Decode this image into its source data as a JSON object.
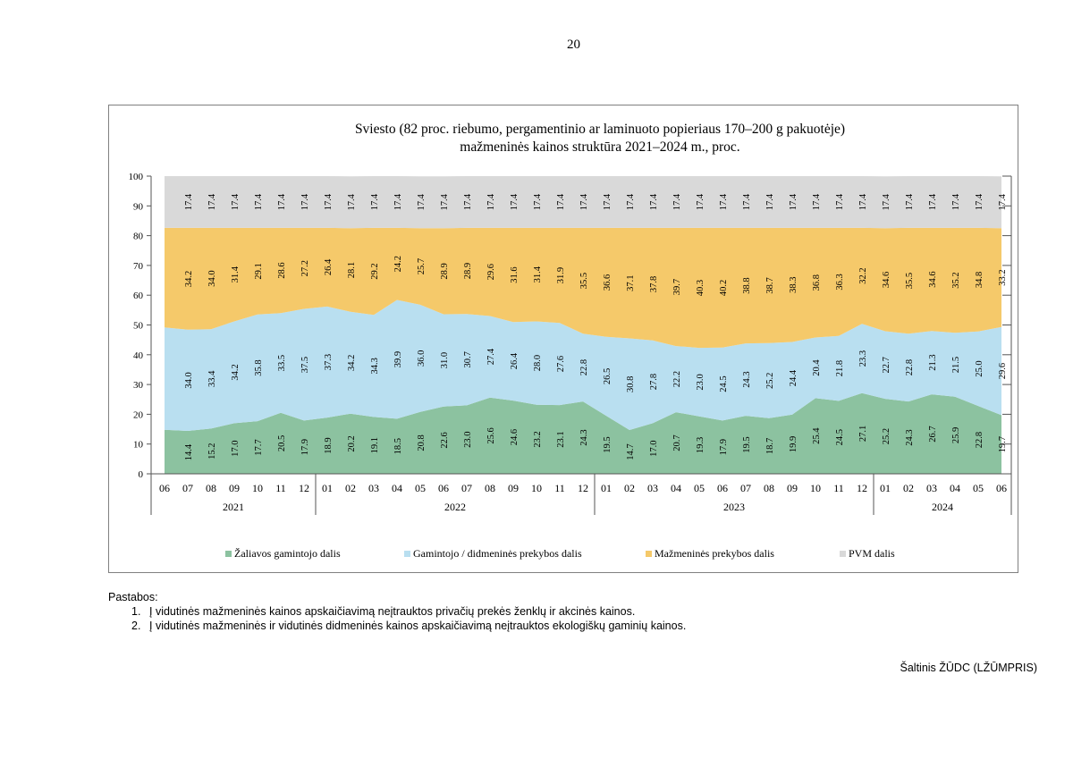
{
  "page_number": "20",
  "title_line1": "Sviesto (82 proc. riebumo, pergamentinio ar laminuoto popieriaus 170–200 g pakuotėje)",
  "title_line2": "mažmeninės kainos struktūra 2021–2024 m., proc.",
  "legend": [
    {
      "label": "Žaliavos gamintojo dalis",
      "color": "#8cc2a0"
    },
    {
      "label": "Gamintojo / didmeninės prekybos dalis",
      "color": "#b9dff0"
    },
    {
      "label": "Mažmeninės prekybos dalis",
      "color": "#f5c96a"
    },
    {
      "label": "PVM dalis",
      "color": "#d9d9d9"
    }
  ],
  "notes_heading": "Pastabos:",
  "notes": [
    {
      "num": "1.",
      "text": "Į vidutinės mažmeninės kainos apskaičiavimą neįtrauktos privačių prekės ženklų ir akcinės kainos."
    },
    {
      "num": "2.",
      "text": "Į vidutinės mažmeninės ir vidutinės didmeninės kainos apskaičiavimą neįtrauktos ekologiškų gaminių kainos."
    }
  ],
  "source": "Šaltinis ŽŪDC (LŽŪMPRIS)",
  "chart_data": {
    "type": "area",
    "stacked": true,
    "ylim": [
      0,
      100
    ],
    "yticks": [
      0,
      10,
      20,
      30,
      40,
      50,
      60,
      70,
      80,
      90,
      100
    ],
    "categories": [
      "06",
      "07",
      "08",
      "09",
      "10",
      "11",
      "12",
      "01",
      "02",
      "03",
      "04",
      "05",
      "06",
      "07",
      "08",
      "09",
      "10",
      "11",
      "12",
      "01",
      "02",
      "03",
      "04",
      "05",
      "06",
      "07",
      "08",
      "09",
      "10",
      "11",
      "12",
      "01",
      "02",
      "03",
      "04",
      "05",
      "06"
    ],
    "year_groups": [
      {
        "label": "2021",
        "count": 7
      },
      {
        "label": "2022",
        "count": 12
      },
      {
        "label": "2023",
        "count": 12
      },
      {
        "label": "2024",
        "count": 6
      }
    ],
    "series": [
      {
        "name": "Žaliavos gamintojo dalis",
        "color": "#8cc2a0",
        "values": [
          14.8,
          14.4,
          15.2,
          17.0,
          17.7,
          20.5,
          17.9,
          18.9,
          20.2,
          19.1,
          18.5,
          20.8,
          22.6,
          23.0,
          25.6,
          24.6,
          23.2,
          23.1,
          24.3,
          19.5,
          14.7,
          17.0,
          20.7,
          19.3,
          17.9,
          19.5,
          18.7,
          19.9,
          25.4,
          24.5,
          27.1,
          25.2,
          24.3,
          26.7,
          25.9,
          22.8,
          19.7
        ],
        "labels": [
          "",
          "14.4",
          "15.2",
          "17.0",
          "17.7",
          "20.5",
          "17.9",
          "18.9",
          "20.2",
          "19.1",
          "18.5",
          "20.8",
          "22.6",
          "23.0",
          "25.6",
          "24.6",
          "23.2",
          "23.1",
          "24.3",
          "19.5",
          "14.7",
          "17.0",
          "20.7",
          "19.3",
          "17.9",
          "19.5",
          "18.7",
          "19.9",
          "25.4",
          "24.5",
          "27.1",
          "25.2",
          "24.3",
          "26.7",
          "25.9",
          "22.8",
          "19.7"
        ]
      },
      {
        "name": "Gamintojo / didmeninės prekybos dalis",
        "color": "#b9dff0",
        "values": [
          34.4,
          34.0,
          33.4,
          34.2,
          35.8,
          33.5,
          37.5,
          37.3,
          34.2,
          34.3,
          39.9,
          36.0,
          31.0,
          30.7,
          27.4,
          26.4,
          28.0,
          27.6,
          22.8,
          26.5,
          30.8,
          27.8,
          22.2,
          23.0,
          24.5,
          24.3,
          25.2,
          24.4,
          20.4,
          21.8,
          23.3,
          22.7,
          22.8,
          21.3,
          21.5,
          25.0,
          29.6
        ],
        "labels": [
          "",
          "34.0",
          "33.4",
          "34.2",
          "35.8",
          "33.5",
          "37.5",
          "37.3",
          "34.2",
          "34.3",
          "39.9",
          "36.0",
          "31.0",
          "30.7",
          "27.4",
          "26.4",
          "28.0",
          "27.6",
          "22.8",
          "26.5",
          "30.8",
          "27.8",
          "22.2",
          "23.0",
          "24.5",
          "24.3",
          "25.2",
          "24.4",
          "20.4",
          "21.8",
          "23.3",
          "22.7",
          "22.8",
          "21.3",
          "21.5",
          "25.0",
          "29.6"
        ]
      },
      {
        "name": "Mažmeninės prekybos dalis",
        "color": "#f5c96a",
        "values": [
          33.4,
          34.2,
          34.0,
          31.4,
          29.1,
          28.6,
          27.2,
          26.4,
          28.1,
          29.2,
          24.2,
          25.7,
          28.9,
          28.9,
          29.6,
          31.6,
          31.4,
          31.9,
          35.5,
          36.6,
          37.1,
          37.8,
          39.7,
          40.3,
          40.2,
          38.8,
          38.7,
          38.3,
          36.8,
          36.3,
          32.2,
          34.6,
          35.5,
          34.6,
          35.2,
          34.8,
          33.2
        ],
        "labels": [
          "",
          "34.2",
          "34.0",
          "31.4",
          "29.1",
          "28.6",
          "27.2",
          "26.4",
          "28.1",
          "29.2",
          "24.2",
          "25.7",
          "28.9",
          "28.9",
          "29.6",
          "31.6",
          "31.4",
          "31.9",
          "35.5",
          "36.6",
          "37.1",
          "37.8",
          "39.7",
          "40.3",
          "40.2",
          "38.8",
          "38.7",
          "38.3",
          "36.8",
          "36.3",
          "32.2",
          "34.6",
          "35.5",
          "34.6",
          "35.2",
          "34.8",
          "33.2"
        ]
      },
      {
        "name": "PVM dalis",
        "color": "#d9d9d9",
        "values": [
          17.4,
          17.4,
          17.4,
          17.4,
          17.4,
          17.4,
          17.4,
          17.4,
          17.4,
          17.4,
          17.4,
          17.4,
          17.4,
          17.4,
          17.4,
          17.4,
          17.4,
          17.4,
          17.4,
          17.4,
          17.4,
          17.4,
          17.4,
          17.4,
          17.4,
          17.4,
          17.4,
          17.4,
          17.4,
          17.4,
          17.4,
          17.4,
          17.4,
          17.4,
          17.4,
          17.4,
          17.4
        ],
        "labels": [
          "",
          "17.4",
          "17.4",
          "17.4",
          "17.4",
          "17.4",
          "17.4",
          "17.4",
          "17.4",
          "17.4",
          "17.4",
          "17.4",
          "17.4",
          "17.4",
          "17.4",
          "17.4",
          "17.4",
          "17.4",
          "17.4",
          "17.4",
          "17.4",
          "17.4",
          "17.4",
          "17.4",
          "17.4",
          "17.4",
          "17.4",
          "17.4",
          "17.4",
          "17.4",
          "17.4",
          "17.4",
          "17.4",
          "17.4",
          "17.4",
          "17.4",
          "17.4"
        ]
      }
    ]
  }
}
